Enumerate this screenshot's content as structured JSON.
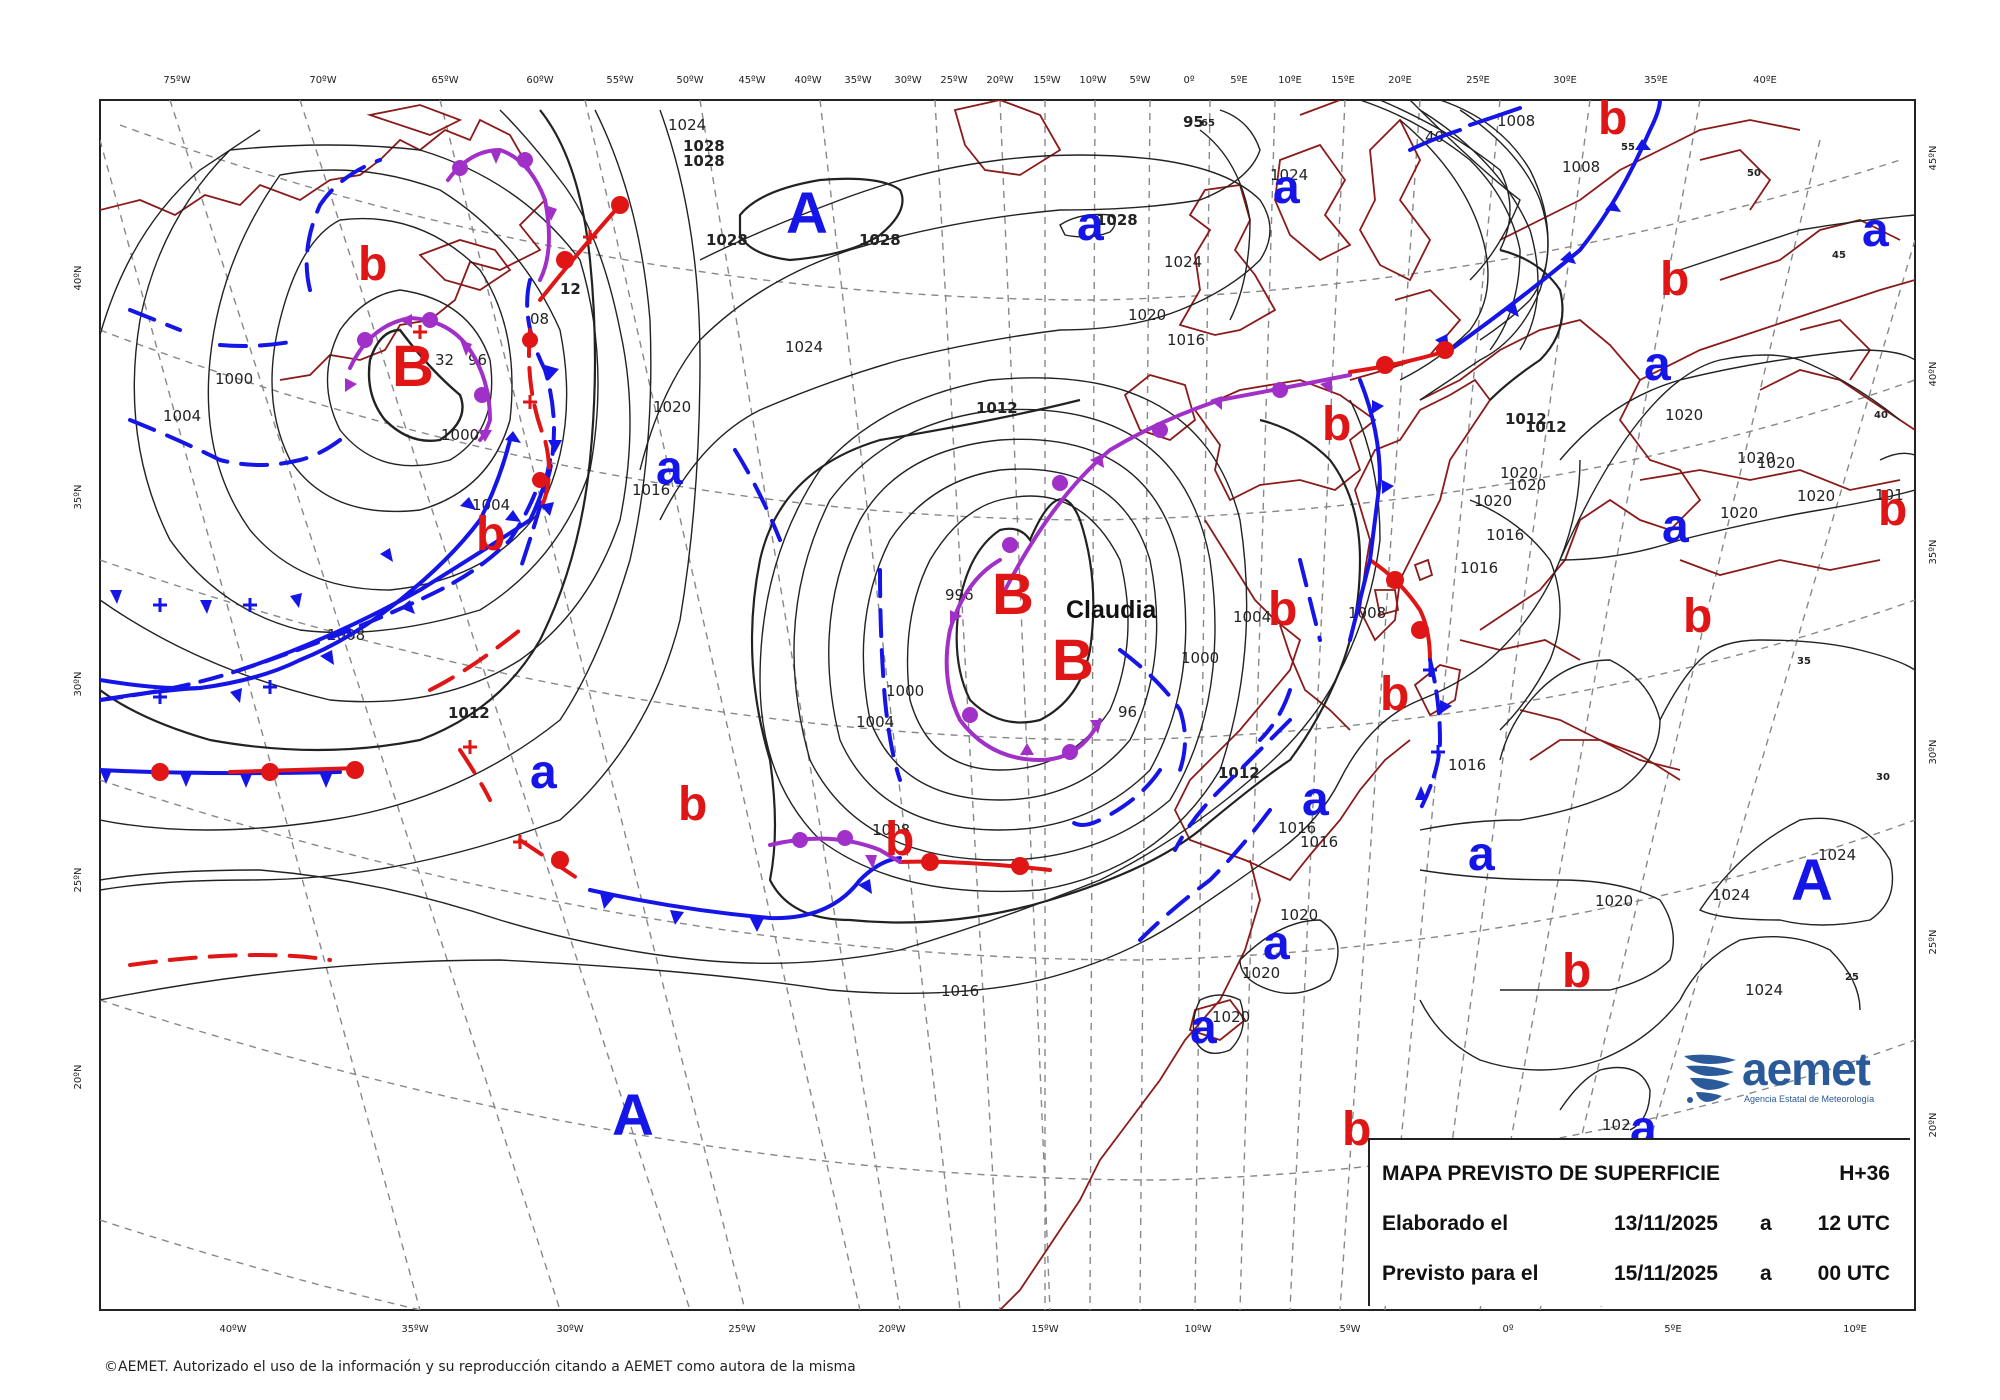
{
  "info_box": {
    "title": "MAPA PREVISTO DE SUPERFICIE",
    "lead": "H+36",
    "made_label": "Elaborado el",
    "made_date": "13/11/2025",
    "made_at": "a",
    "made_time": "12 UTC",
    "valid_label": "Previsto para el",
    "valid_date": "15/11/2025",
    "valid_at": "a",
    "valid_time": "00 UTC"
  },
  "storm_name": "Claudia",
  "logo": {
    "name": "aemet",
    "subtitle": "Agencia Estatal de Meteorología"
  },
  "copyright": "©AEMET. Autorizado el uso de la información y su reproducción citando a AEMET como autora de la misma",
  "top_longitudes": [
    "75ºW",
    "70ºW",
    "65ºW",
    "60ºW",
    "55ºW",
    "50ºW",
    "45ºW",
    "40ºW",
    "35ºW",
    "30ºW",
    "25ºW",
    "20ºW",
    "15ºW",
    "10ºW",
    "5ºW",
    "0º",
    "5ºE",
    "10ºE",
    "15ºE",
    "20ºE",
    "25ºE",
    "30ºE",
    "35ºE",
    "40ºE"
  ],
  "bottom_longitudes": [
    "40ºW",
    "35ºW",
    "30ºW",
    "25ºW",
    "20ºW",
    "15ºW",
    "10ºW",
    "5ºW",
    "0º",
    "5ºE",
    "10ºE"
  ],
  "left_latitudes": [
    "40ºN",
    "35ºN",
    "30ºN",
    "25ºN",
    "20ºN"
  ],
  "right_latitudes": [
    "45ºN",
    "40ºN",
    "35ºN",
    "30ºN",
    "25ºN",
    "20ºN"
  ],
  "grid_values": [
    "65",
    "55",
    "50",
    "45",
    "40",
    "35",
    "30",
    "25"
  ],
  "isobar_values": [
    "1000",
    "1004",
    "1008",
    "1012",
    "1016",
    "1020",
    "1024",
    "1028",
    "996"
  ],
  "pressure_centers": [
    "A",
    "a",
    "B",
    "b"
  ],
  "colors": {
    "cold_front": "#1515e8",
    "warm_front": "#e01515",
    "occluded_front": "#a030c8",
    "coast": "#8b1a1a",
    "grid": "#888888",
    "isobar": "#222222"
  }
}
